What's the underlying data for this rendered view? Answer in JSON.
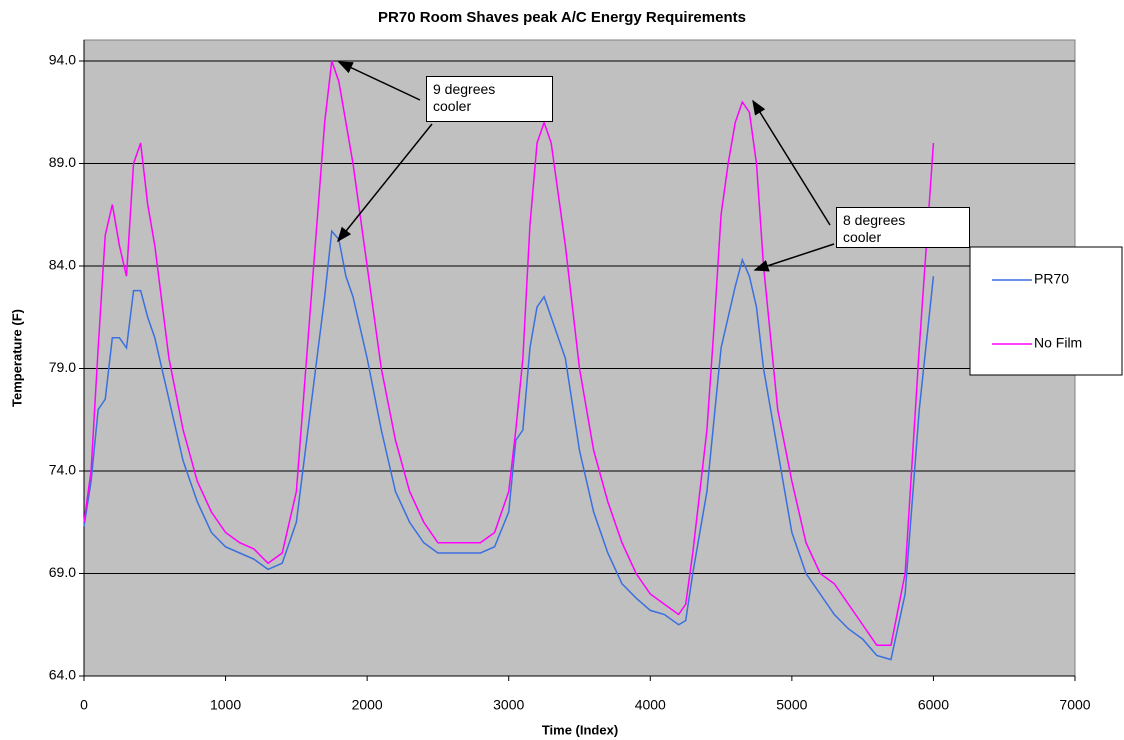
{
  "chart_data": {
    "type": "line",
    "title": "PR70 Room Shaves peak A/C Energy Requirements",
    "xlabel": "Time (Index)",
    "ylabel": "Temperature (F)",
    "annotations": [
      "9 degrees cooler",
      "8 degrees cooler"
    ],
    "x": [
      0,
      50,
      100,
      150,
      200,
      250,
      300,
      350,
      400,
      450,
      500,
      600,
      700,
      800,
      900,
      1000,
      1100,
      1200,
      1300,
      1400,
      1500,
      1600,
      1700,
      1750,
      1800,
      1850,
      1900,
      2000,
      2100,
      2200,
      2300,
      2400,
      2500,
      2600,
      2700,
      2800,
      2900,
      3000,
      3050,
      3100,
      3150,
      3200,
      3250,
      3300,
      3400,
      3500,
      3600,
      3700,
      3800,
      3900,
      4000,
      4100,
      4200,
      4250,
      4300,
      4400,
      4450,
      4500,
      4550,
      4600,
      4650,
      4700,
      4750,
      4800,
      4900,
      5000,
      5100,
      5200,
      5300,
      5400,
      5500,
      5600,
      5700,
      5800,
      5900,
      6000
    ],
    "series": [
      {
        "name": "PR70",
        "color": "#3a6fe0",
        "values": [
          71.3,
          73.5,
          77,
          77.5,
          80.5,
          80.5,
          80,
          82.8,
          82.8,
          81.5,
          80.5,
          77.5,
          74.5,
          72.5,
          71,
          70.3,
          70,
          69.7,
          69.2,
          69.5,
          71.5,
          77,
          82.5,
          85.7,
          85.3,
          83.5,
          82.5,
          79.5,
          76,
          73,
          71.5,
          70.5,
          70,
          70,
          70,
          70,
          70.3,
          72,
          75.5,
          76,
          80,
          82,
          82.5,
          81.5,
          79.5,
          75,
          72,
          70,
          68.5,
          67.8,
          67.2,
          67,
          66.5,
          66.7,
          69,
          73,
          76.5,
          80,
          81.5,
          83,
          84.3,
          83.5,
          82,
          79,
          75,
          71,
          69,
          68,
          67,
          66.3,
          65.8,
          65,
          64.8,
          68,
          77,
          83.5
        ]
      },
      {
        "name": "No Film",
        "color": "#ff00ff",
        "values": [
          71.5,
          74,
          80,
          85.5,
          87,
          85,
          83.5,
          89,
          90,
          87,
          85,
          79.5,
          76,
          73.5,
          72,
          71,
          70.5,
          70.2,
          69.5,
          70,
          73,
          82,
          91,
          94,
          93,
          91,
          89,
          84,
          79,
          75.5,
          73,
          71.5,
          70.5,
          70.5,
          70.5,
          70.5,
          71,
          73,
          76,
          79.5,
          86,
          90,
          91,
          90,
          85,
          79,
          75,
          72.5,
          70.5,
          69,
          68,
          67.5,
          67,
          67.5,
          70,
          76,
          81,
          86.5,
          89,
          91,
          92,
          91.5,
          89,
          84,
          77,
          73.5,
          70.5,
          69,
          68.5,
          67.5,
          66.5,
          65.5,
          65.5,
          69,
          80,
          90
        ]
      }
    ],
    "xlim": [
      0,
      7000
    ],
    "xticks": [
      0,
      1000,
      2000,
      3000,
      4000,
      5000,
      6000,
      7000
    ],
    "ylim": [
      64,
      94
    ],
    "yticks": [
      {
        "value": 64,
        "label": "64.0"
      },
      {
        "value": 69,
        "label": "69.0"
      },
      {
        "value": 74,
        "label": "74.0"
      },
      {
        "value": 79,
        "label": "79.0"
      },
      {
        "value": 84,
        "label": "84.0"
      },
      {
        "value": 89,
        "label": "89.0"
      },
      {
        "value": 94,
        "label": "94.0"
      }
    ],
    "grid": true,
    "legend": "right",
    "background": "#c0c0c0"
  }
}
